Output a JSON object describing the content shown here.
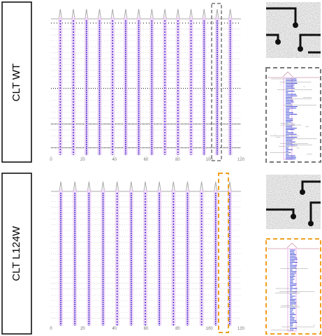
{
  "panels": [
    {
      "label": "CLT WT",
      "xlim": [
        0,
        120
      ],
      "xticks": [
        0,
        20,
        40,
        60,
        80,
        100,
        120
      ]
    },
    {
      "label": "CLT L124W",
      "xlim": [
        0,
        120
      ],
      "xticks": [
        0,
        20,
        40,
        60,
        80,
        100,
        120
      ]
    }
  ]
}
